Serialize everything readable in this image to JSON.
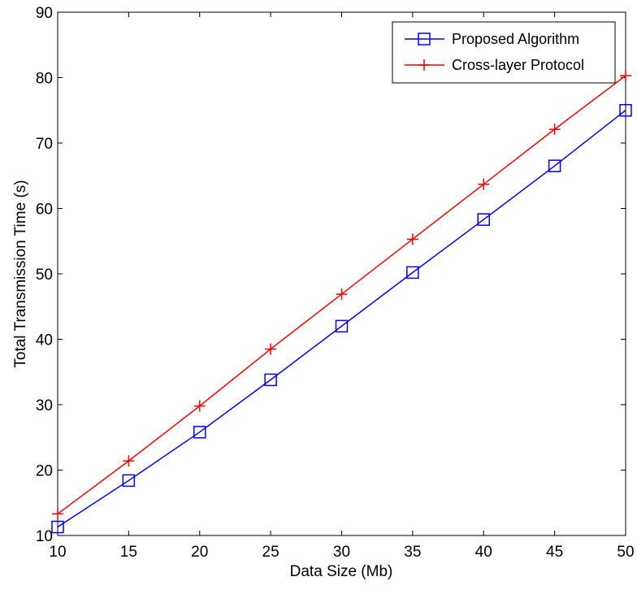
{
  "chart_data": {
    "type": "line",
    "title": "",
    "xlabel": "Data Size (Mb)",
    "ylabel": "Total Transmission Time (s)",
    "xlim": [
      10,
      50
    ],
    "ylim": [
      10,
      90
    ],
    "x": [
      10,
      15,
      20,
      25,
      30,
      35,
      40,
      45,
      50
    ],
    "xticks": [
      10,
      15,
      20,
      25,
      30,
      35,
      40,
      45,
      50
    ],
    "yticks": [
      10,
      20,
      30,
      40,
      50,
      60,
      70,
      80,
      90
    ],
    "grid": false,
    "legend_position": "top-right",
    "series": [
      {
        "name": "Proposed Algorithm",
        "color": "#0000ff",
        "marker": "square",
        "values": [
          11.3,
          18.4,
          25.8,
          33.8,
          42.0,
          50.2,
          58.3,
          66.5,
          75.0
        ]
      },
      {
        "name": "Cross-layer Protocol",
        "color": "#ff0000",
        "marker": "plus",
        "values": [
          13.3,
          21.4,
          29.8,
          38.5,
          46.9,
          55.3,
          63.7,
          72.1,
          80.3
        ]
      }
    ]
  }
}
